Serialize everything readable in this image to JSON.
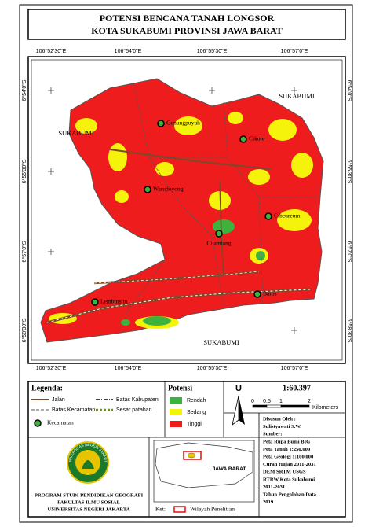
{
  "header": {
    "title_lines": [
      "POTENSI BENCANA TANAH LONGSOR",
      "KOTA SUKABUMI PROVINSI JAWA BARAT"
    ]
  },
  "map": {
    "x_coords": [
      "106°52'30\"E",
      "106°54'0\"E",
      "106°55'30\"E",
      "106°57'0\"E"
    ],
    "y_coords": [
      "6°54'0\"S",
      "6°55'30\"S",
      "6°57'0\"S",
      "6°58'30\"S"
    ],
    "region_labels": [
      "SUKABUMI",
      "SUKABUMI",
      "SUKABUMI"
    ],
    "districts": [
      "Gunungpuyuh",
      "Cikole",
      "Warudoyong",
      "Cibeureum",
      "Citamiang",
      "Baros",
      "Lembursitu"
    ]
  },
  "legend": {
    "title": "Legenda:",
    "items": [
      "Jalan",
      "Batas Kabupaten",
      "Batas Kecamatan",
      "Sesar patahan",
      "Kecamatan"
    ],
    "potensi_title": "Potensi",
    "potensi": [
      "Rendah",
      "Sedang",
      "Tinggi"
    ]
  },
  "north": "U",
  "scale": {
    "ratio": "1:60.397",
    "ticks": [
      "0",
      "0.5",
      "1",
      "2"
    ],
    "unit": "Kilometers"
  },
  "credits": [
    "Disusun Oleh :",
    "Sulistyawati S.W.",
    "Sumber:",
    "Peta Rupa Bumi BIG",
    "Peta Tanah 1:250.000",
    "Peta Geologi 1:100.000",
    "Curah Hujan 2011-2031",
    "DEM SRTM USGS",
    "RTRW Kota Sukabumi",
    "2011-2031",
    "Tahun Pengolahan Data",
    "2019"
  ],
  "logo": {
    "text": "UNIVERSITAS NEGERI JAKARTA"
  },
  "inset": {
    "label": "JAWA BARAT",
    "key_title": "Ket:",
    "key_item": "Wilayah Penelitian"
  },
  "footer": {
    "lines": [
      "PROGRAM STUDI PENDIDIKAN GEOGRAFI",
      "FAKULTAS ILMU SOSIAL",
      "UNIVERSITAS NEGERI JAKARTA"
    ]
  }
}
